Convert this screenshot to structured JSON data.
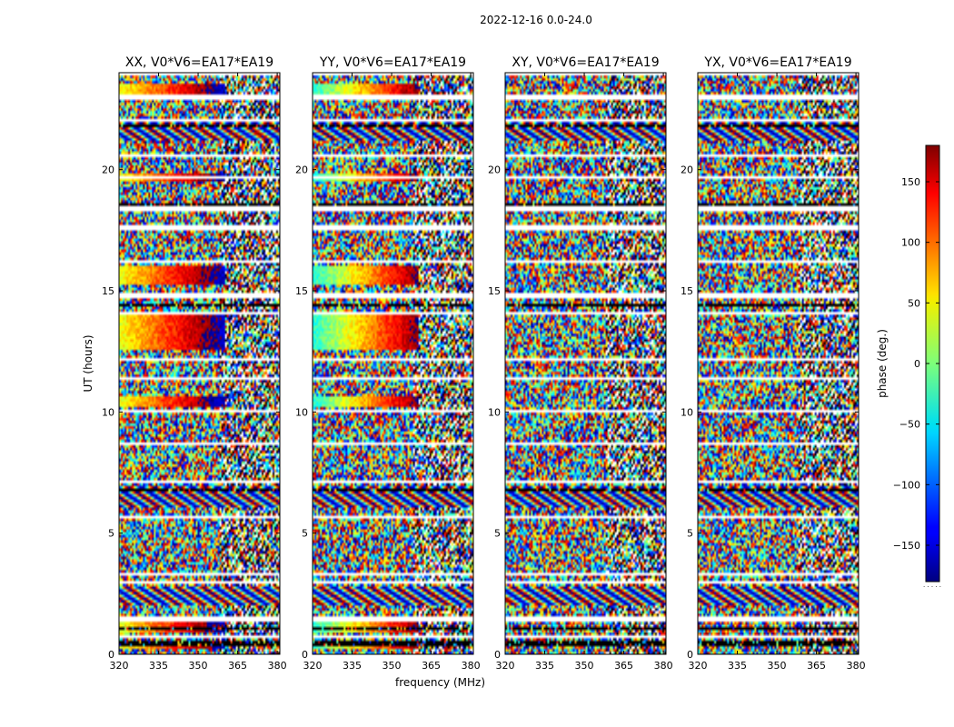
{
  "figure": {
    "suptitle": "2022-12-16 0.0-24.0"
  },
  "chart_data": [
    {
      "type": "heatmap",
      "title": "XX, V0*V6=EA17*EA19",
      "polarization": "XX",
      "baseline": "V0*V6=EA17*EA19",
      "xlabel": "",
      "ylabel": "UT (hours)",
      "xlim": [
        320,
        381
      ],
      "ylim": [
        0,
        24
      ],
      "xticks": [
        320,
        335,
        350,
        365,
        380
      ],
      "yticks": [
        0,
        5,
        10,
        15,
        20
      ],
      "colormap": "jet",
      "value": "phase (deg.)"
    },
    {
      "type": "heatmap",
      "title": "YY, V0*V6=EA17*EA19",
      "polarization": "YY",
      "baseline": "V0*V6=EA17*EA19",
      "xlabel": "frequency (MHz)",
      "ylabel": "",
      "xlim": [
        320,
        381
      ],
      "ylim": [
        0,
        24
      ],
      "xticks": [
        320,
        335,
        350,
        365,
        380
      ],
      "yticks": [
        0,
        5,
        10,
        15,
        20
      ],
      "colormap": "jet",
      "value": "phase (deg.)"
    },
    {
      "type": "heatmap",
      "title": "XY, V0*V6=EA17*EA19",
      "polarization": "XY",
      "baseline": "V0*V6=EA17*EA19",
      "xlabel": "",
      "ylabel": "",
      "xlim": [
        320,
        381
      ],
      "ylim": [
        0,
        24
      ],
      "xticks": [
        320,
        335,
        350,
        365,
        380
      ],
      "yticks": [
        0,
        5,
        10,
        15,
        20
      ],
      "colormap": "jet",
      "value": "phase (deg.)"
    },
    {
      "type": "heatmap",
      "title": "YX, V0*V6=EA17*EA19",
      "polarization": "YX",
      "baseline": "V0*V6=EA17*EA19",
      "xlabel": "",
      "ylabel": "",
      "xlim": [
        320,
        381
      ],
      "ylim": [
        0,
        24
      ],
      "xticks": [
        320,
        335,
        350,
        365,
        380
      ],
      "yticks": [
        0,
        5,
        10,
        15,
        20
      ],
      "colormap": "jet",
      "value": "phase (deg.)"
    }
  ],
  "colorbar": {
    "label": "phase (deg.)",
    "range": [
      -180,
      180
    ],
    "ticks": [
      150,
      100,
      50,
      0,
      -50,
      -100,
      -150
    ],
    "tick_labels": [
      "150",
      "100",
      "50",
      "0",
      "−50",
      "−100",
      "−150"
    ],
    "colormap": "jet"
  },
  "data_features": {
    "blank_time_bands_hours": [
      0.7,
      1.45,
      2.95,
      3.3,
      5.65,
      7.1,
      8.65,
      10.05,
      11.35,
      12.2,
      14.05,
      14.8,
      16.2,
      17.6,
      18.4,
      19.7,
      20.6,
      22.0,
      23.0,
      24.0
    ],
    "black_time_bands_hours": [
      0.45,
      1.1,
      6.75,
      14.4,
      18.55,
      21.8,
      22.95
    ],
    "fringe_pattern_hours": [
      [
        6.1,
        7.0
      ],
      [
        2.0,
        2.8
      ],
      [
        21.2,
        22.0
      ]
    ],
    "rainbow_gradient_hours": [
      [
        0.2,
        0.4
      ],
      [
        0.9,
        1.3
      ],
      [
        10.2,
        10.6
      ],
      [
        12.6,
        14.0
      ],
      [
        15.2,
        16.0
      ],
      [
        19.5,
        19.8
      ],
      [
        23.1,
        23.6
      ]
    ]
  }
}
